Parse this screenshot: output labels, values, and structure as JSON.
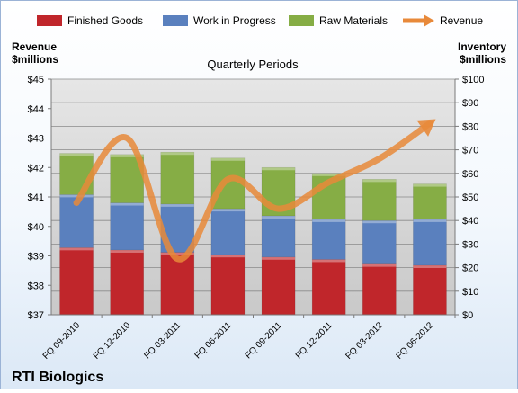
{
  "company": "RTI Biologics",
  "chart_data": {
    "type": "bar",
    "title": "Quarterly Periods",
    "categories": [
      "FQ 09-2010",
      "FQ 12-2010",
      "FQ 03-2011",
      "FQ 06-2011",
      "FQ 09-2011",
      "FQ 12-2011",
      "FQ 03-2012",
      "FQ 06-2012"
    ],
    "stacked": true,
    "series": [
      {
        "name": "Finished Goods",
        "axis": "right",
        "color": "#c0262b",
        "values": [
          28.5,
          27.5,
          26.5,
          25.5,
          24.5,
          23.5,
          21.5,
          21.0
        ]
      },
      {
        "name": "Work in Progress",
        "axis": "right",
        "color": "#5a80be",
        "values": [
          22.5,
          20.0,
          20.5,
          19.5,
          17.5,
          17.0,
          18.5,
          19.5
        ]
      },
      {
        "name": "Raw Materials",
        "axis": "right",
        "color": "#86ad45",
        "values": [
          17.5,
          20.5,
          22.0,
          21.5,
          20.5,
          19.5,
          17.5,
          15.0
        ]
      },
      {
        "name": "Revenue",
        "type": "line",
        "axis": "left",
        "color": "#e8893a",
        "values": [
          40.8,
          43.0,
          38.9,
          41.6,
          40.6,
          41.5,
          42.3,
          43.5
        ]
      }
    ],
    "y_left": {
      "label_line1": "Revenue",
      "label_line2": "$millions",
      "min": 37,
      "max": 45,
      "step": 1,
      "prefix": "$"
    },
    "y_right": {
      "label_line1": "Inventory",
      "label_line2": "$millions",
      "min": 0,
      "max": 100,
      "step": 10,
      "prefix": "$"
    },
    "legend_position": "top",
    "grid": true
  }
}
